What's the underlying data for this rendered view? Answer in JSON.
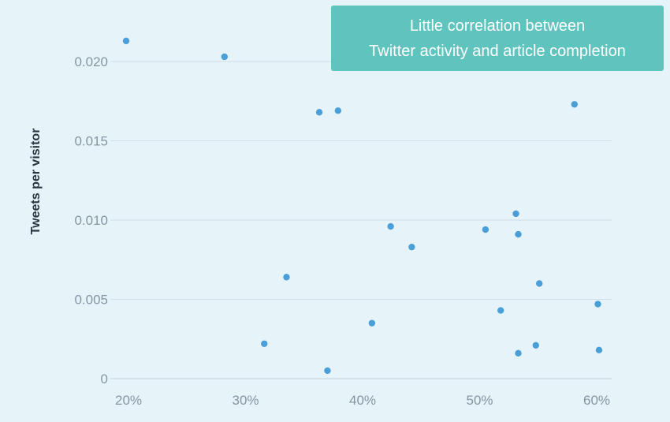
{
  "chart_data": {
    "type": "scatter",
    "title": "",
    "xlabel": "",
    "ylabel": "Tweets per visitor",
    "xlim": [
      0.195,
      0.605
    ],
    "ylim": [
      0,
      0.023
    ],
    "x_ticks": [
      0.2,
      0.3,
      0.4,
      0.5,
      0.6
    ],
    "x_tick_labels": [
      "20%",
      "30%",
      "40%",
      "50%",
      "60%"
    ],
    "y_ticks": [
      0,
      0.005,
      0.01,
      0.015,
      0.02
    ],
    "y_tick_labels": [
      "0",
      "0.005",
      "0.010",
      "0.015",
      "0.020"
    ],
    "grid": "horizontal",
    "point_color": "#4a9fd8",
    "annotation": [
      "Little correlation between",
      "Twitter activity and article completion"
    ],
    "points": [
      {
        "x": 0.198,
        "y": 0.0213
      },
      {
        "x": 0.282,
        "y": 0.0203
      },
      {
        "x": 0.316,
        "y": 0.0022
      },
      {
        "x": 0.335,
        "y": 0.0064
      },
      {
        "x": 0.363,
        "y": 0.0168
      },
      {
        "x": 0.37,
        "y": 0.0005
      },
      {
        "x": 0.379,
        "y": 0.0169
      },
      {
        "x": 0.408,
        "y": 0.0035
      },
      {
        "x": 0.424,
        "y": 0.0096
      },
      {
        "x": 0.442,
        "y": 0.0083
      },
      {
        "x": 0.505,
        "y": 0.0094
      },
      {
        "x": 0.518,
        "y": 0.0043
      },
      {
        "x": 0.531,
        "y": 0.0104
      },
      {
        "x": 0.533,
        "y": 0.0091
      },
      {
        "x": 0.533,
        "y": 0.0016
      },
      {
        "x": 0.548,
        "y": 0.0021
      },
      {
        "x": 0.551,
        "y": 0.006
      },
      {
        "x": 0.581,
        "y": 0.0173
      },
      {
        "x": 0.601,
        "y": 0.0047
      },
      {
        "x": 0.602,
        "y": 0.0018
      }
    ]
  }
}
